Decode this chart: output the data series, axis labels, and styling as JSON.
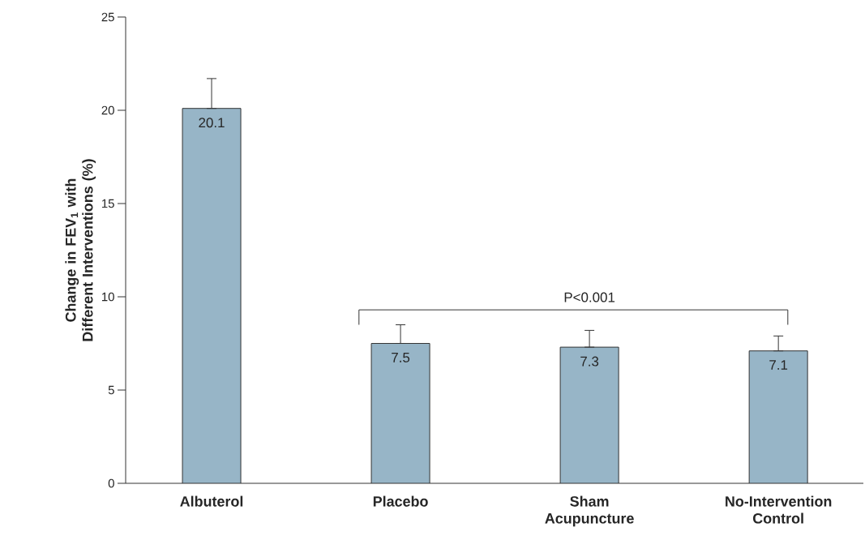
{
  "chart_data": {
    "type": "bar",
    "ylabel": "Change in FEV$_{1}$ with Different Interventions (%)",
    "categories": [
      "Albuterol",
      "Placebo",
      "Sham Acupuncture",
      "No-Intervention Control"
    ],
    "values": [
      20.1,
      7.5,
      7.3,
      7.1
    ],
    "errors": [
      [
        20.1,
        21.7
      ],
      [
        7.5,
        8.5
      ],
      [
        7.3,
        8.2
      ],
      [
        7.1,
        7.9
      ]
    ],
    "color": "#97b5c7",
    "data_labels": true,
    "ylim": [
      0,
      25
    ],
    "yticks": [
      0,
      5,
      10,
      15,
      20,
      25
    ],
    "grid": false,
    "annotations": [
      "P<0.001"
    ]
  }
}
